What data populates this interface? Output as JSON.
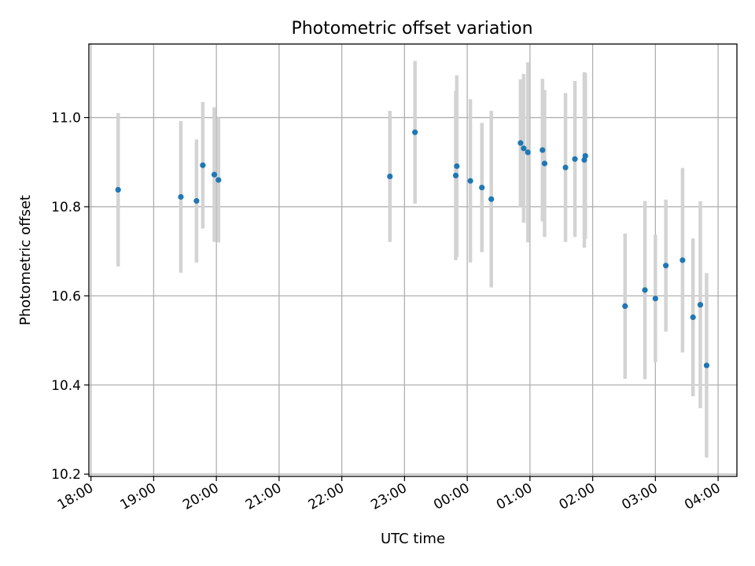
{
  "chart_data": {
    "type": "scatter",
    "title": "Photometric offset variation",
    "xlabel": "UTC time",
    "ylabel": "Photometric offset",
    "xlim": [
      "17:58",
      "04:18"
    ],
    "ylim": [
      10.195,
      11.165
    ],
    "xticks": [
      "18:00",
      "19:00",
      "20:00",
      "21:00",
      "22:00",
      "23:00",
      "00:00",
      "01:00",
      "02:00",
      "03:00",
      "04:00"
    ],
    "yticks": [
      "10.2",
      "10.4",
      "10.6",
      "10.8",
      "11.0"
    ],
    "grid": true,
    "colors": {
      "points": "#1f77b4",
      "error_bars": "#d3d3d3",
      "grid": "#b0b0b0"
    },
    "points": [
      {
        "x": "18:26",
        "y": 10.838,
        "yerr": 0.172
      },
      {
        "x": "19:26",
        "y": 10.822,
        "yerr": 0.17
      },
      {
        "x": "19:41",
        "y": 10.813,
        "yerr": 0.138
      },
      {
        "x": "19:47",
        "y": 10.893,
        "yerr": 0.142
      },
      {
        "x": "19:58",
        "y": 10.872,
        "yerr": 0.151
      },
      {
        "x": "20:02",
        "y": 10.86,
        "yerr": 0.14
      },
      {
        "x": "22:46",
        "y": 10.868,
        "yerr": 0.147
      },
      {
        "x": "23:10",
        "y": 10.967,
        "yerr": 0.16
      },
      {
        "x": "23:49",
        "y": 10.87,
        "yerr": 0.19
      },
      {
        "x": "23:50",
        "y": 10.891,
        "yerr": 0.204
      },
      {
        "x": "00:03",
        "y": 10.858,
        "yerr": 0.183
      },
      {
        "x": "00:14",
        "y": 10.843,
        "yerr": 0.145
      },
      {
        "x": "00:23",
        "y": 10.817,
        "yerr": 0.198
      },
      {
        "x": "00:51",
        "y": 10.943,
        "yerr": 0.143
      },
      {
        "x": "00:54",
        "y": 10.931,
        "yerr": 0.167
      },
      {
        "x": "00:58",
        "y": 10.922,
        "yerr": 0.202
      },
      {
        "x": "01:12",
        "y": 10.927,
        "yerr": 0.16
      },
      {
        "x": "01:14",
        "y": 10.897,
        "yerr": 0.165
      },
      {
        "x": "01:34",
        "y": 10.888,
        "yerr": 0.167
      },
      {
        "x": "01:43",
        "y": 10.907,
        "yerr": 0.175
      },
      {
        "x": "01:52",
        "y": 10.905,
        "yerr": 0.197
      },
      {
        "x": "01:53",
        "y": 10.914,
        "yerr": 0.186
      },
      {
        "x": "02:31",
        "y": 10.577,
        "yerr": 0.163
      },
      {
        "x": "02:50",
        "y": 10.613,
        "yerr": 0.2
      },
      {
        "x": "03:00",
        "y": 10.594,
        "yerr": 0.143
      },
      {
        "x": "03:10",
        "y": 10.668,
        "yerr": 0.148
      },
      {
        "x": "03:26",
        "y": 10.68,
        "yerr": 0.207
      },
      {
        "x": "03:36",
        "y": 10.552,
        "yerr": 0.177
      },
      {
        "x": "03:43",
        "y": 10.58,
        "yerr": 0.232
      },
      {
        "x": "03:49",
        "y": 10.444,
        "yerr": 0.207
      }
    ]
  }
}
